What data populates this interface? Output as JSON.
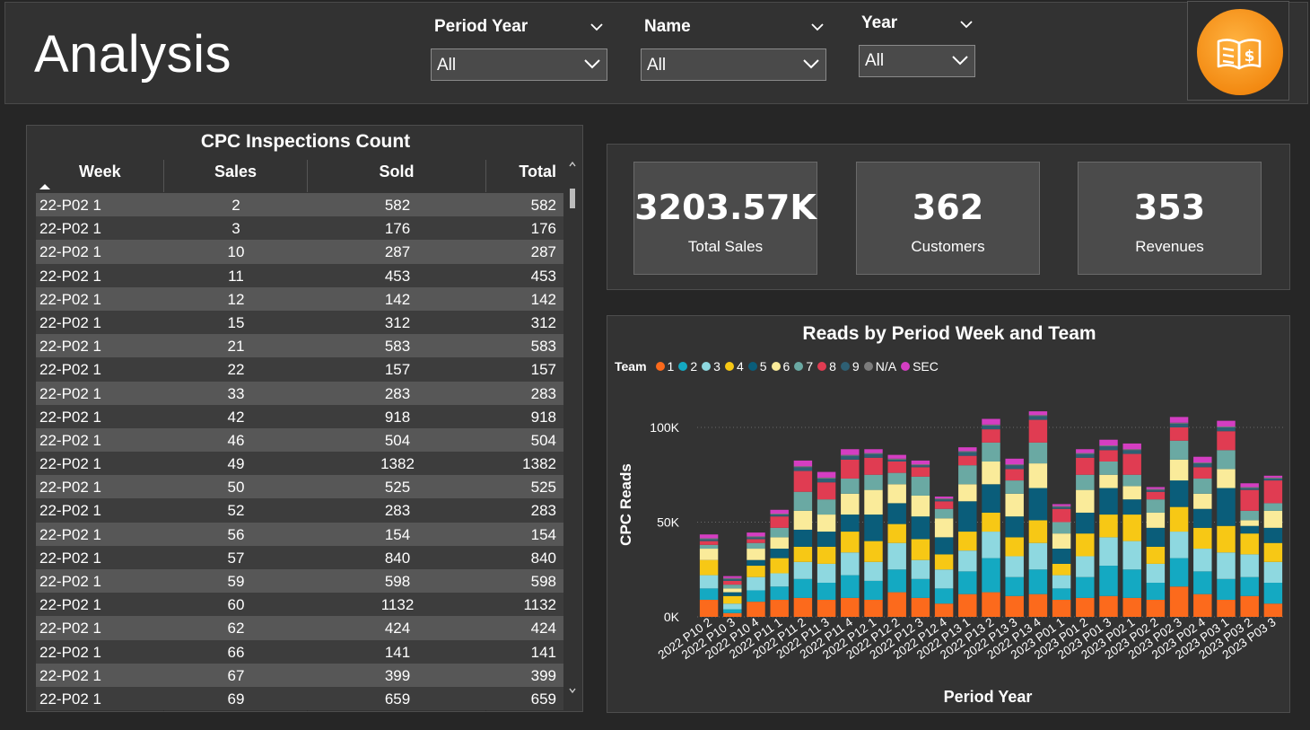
{
  "header": {
    "title": "Analysis",
    "slicers": [
      {
        "label": "Period Year",
        "value": "All"
      },
      {
        "label": "Name",
        "value": "All"
      },
      {
        "label": "Year",
        "value": "All"
      }
    ]
  },
  "table": {
    "title": "CPC Inspections Count",
    "columns": [
      "Week",
      "Sales",
      "Sold",
      "Total"
    ],
    "rows": [
      [
        "22-P02 1",
        "2",
        "582",
        "582"
      ],
      [
        "22-P02 1",
        "3",
        "176",
        "176"
      ],
      [
        "22-P02 1",
        "10",
        "287",
        "287"
      ],
      [
        "22-P02 1",
        "11",
        "453",
        "453"
      ],
      [
        "22-P02 1",
        "12",
        "142",
        "142"
      ],
      [
        "22-P02 1",
        "15",
        "312",
        "312"
      ],
      [
        "22-P02 1",
        "21",
        "583",
        "583"
      ],
      [
        "22-P02 1",
        "22",
        "157",
        "157"
      ],
      [
        "22-P02 1",
        "33",
        "283",
        "283"
      ],
      [
        "22-P02 1",
        "42",
        "918",
        "918"
      ],
      [
        "22-P02 1",
        "46",
        "504",
        "504"
      ],
      [
        "22-P02 1",
        "49",
        "1382",
        "1382"
      ],
      [
        "22-P02 1",
        "50",
        "525",
        "525"
      ],
      [
        "22-P02 1",
        "52",
        "283",
        "283"
      ],
      [
        "22-P02 1",
        "56",
        "154",
        "154"
      ],
      [
        "22-P02 1",
        "57",
        "840",
        "840"
      ],
      [
        "22-P02 1",
        "59",
        "598",
        "598"
      ],
      [
        "22-P02 1",
        "60",
        "1132",
        "1132"
      ],
      [
        "22-P02 1",
        "62",
        "424",
        "424"
      ],
      [
        "22-P02 1",
        "66",
        "141",
        "141"
      ],
      [
        "22-P02 1",
        "67",
        "399",
        "399"
      ],
      [
        "22-P02 1",
        "69",
        "659",
        "659"
      ]
    ]
  },
  "kpis": [
    {
      "value": "3203.57K",
      "label": "Total Sales"
    },
    {
      "value": "362",
      "label": "Customers"
    },
    {
      "value": "353",
      "label": "Revenues"
    }
  ],
  "icons": {
    "logo": "book-dollar-icon",
    "dropdown": "chevron-down-icon",
    "sort": "sort-ascending-icon"
  },
  "colors": {
    "accent": "#f38a12",
    "series": [
      "#fc6a1c",
      "#14a9c2",
      "#8ed8e0",
      "#f7c815",
      "#0a5d7a",
      "#faeb9a",
      "#6aa9a3",
      "#e03c52",
      "#2e5f73",
      "#7c7c7c",
      "#d43ec2"
    ]
  },
  "chart_data": {
    "type": "bar",
    "stacked": true,
    "title": "Reads by Period Week and Team",
    "xlabel": "Period Year",
    "ylabel": "CPC Reads",
    "legend_title": "Team",
    "legend_position": "top-left",
    "ylim": [
      0,
      100000
    ],
    "yticks": [
      "0K",
      "50K",
      "100K"
    ],
    "grid": true,
    "categories": [
      "2022 P10 2",
      "2022 P10 3",
      "2022 P10 4",
      "2022 P11 1",
      "2022 P11 2",
      "2022 P11 3",
      "2022 P11 4",
      "2022 P12 1",
      "2022 P12 2",
      "2022 P12 3",
      "2022 P12 4",
      "2022 P13 1",
      "2022 P13 2",
      "2022 P13 3",
      "2022 P13 4",
      "2023 P01 1",
      "2023 P01 2",
      "2023 P01 3",
      "2023 P02 1",
      "2023 P02 2",
      "2023 P02 3",
      "2023 P02 4",
      "2023 P03 1",
      "2023 P03 2",
      "2023 P03 3"
    ],
    "series": [
      {
        "name": "1",
        "values": [
          9000,
          2000,
          8000,
          9000,
          10000,
          9000,
          10000,
          9000,
          13000,
          10000,
          7000,
          12000,
          13000,
          11000,
          12000,
          9000,
          10000,
          11000,
          10000,
          9000,
          16000,
          12000,
          9000,
          11000,
          7000
        ]
      },
      {
        "name": "2",
        "values": [
          6000,
          2000,
          6000,
          7000,
          10000,
          9000,
          12000,
          10000,
          12000,
          10000,
          8000,
          12000,
          18000,
          10000,
          13000,
          6000,
          11000,
          16000,
          15000,
          9000,
          15000,
          12000,
          11000,
          10000,
          11000
        ]
      },
      {
        "name": "3",
        "values": [
          7000,
          3000,
          7000,
          7000,
          9000,
          10000,
          12000,
          10000,
          14000,
          10000,
          10000,
          11000,
          14000,
          11000,
          14000,
          7000,
          11000,
          15000,
          15000,
          10000,
          14000,
          12000,
          14000,
          12000,
          11000
        ]
      },
      {
        "name": "4",
        "values": [
          8000,
          4000,
          6000,
          8000,
          8000,
          9000,
          11000,
          11000,
          10000,
          11000,
          8000,
          10000,
          10000,
          10000,
          12000,
          6000,
          12000,
          12000,
          14000,
          9000,
          13000,
          11000,
          14000,
          11000,
          10000
        ]
      },
      {
        "name": "5",
        "values": [
          0,
          2000,
          3000,
          5000,
          9000,
          8000,
          9000,
          14000,
          11000,
          12000,
          9000,
          16000,
          15000,
          11000,
          17000,
          8000,
          11000,
          14000,
          8000,
          10000,
          14000,
          10000,
          20000,
          4000,
          8000
        ]
      },
      {
        "name": "6",
        "values": [
          6000,
          2000,
          6000,
          6000,
          10000,
          9000,
          11000,
          13000,
          10000,
          11000,
          10000,
          9000,
          12000,
          12000,
          13000,
          8000,
          12000,
          7000,
          7000,
          8000,
          11000,
          8000,
          10000,
          3000,
          9000
        ]
      },
      {
        "name": "7",
        "values": [
          2000,
          2000,
          3000,
          5000,
          10000,
          8000,
          8000,
          8000,
          6000,
          10000,
          5000,
          10000,
          10000,
          7000,
          11000,
          6000,
          8000,
          7000,
          6000,
          7000,
          10000,
          8000,
          10000,
          5000,
          4000
        ]
      },
      {
        "name": "8",
        "values": [
          2000,
          2000,
          2000,
          6000,
          11000,
          9000,
          10000,
          9000,
          6000,
          5000,
          4000,
          5000,
          7000,
          6000,
          12000,
          7000,
          9000,
          6000,
          11000,
          4000,
          7000,
          6000,
          10000,
          11000,
          12000
        ]
      },
      {
        "name": "9",
        "values": [
          1000,
          1000,
          1000,
          1000,
          2000,
          2000,
          2000,
          2000,
          1000,
          1000,
          1000,
          2000,
          2000,
          2000,
          2000,
          1000,
          2000,
          2000,
          2000,
          1000,
          2000,
          2000,
          2000,
          1000,
          1000
        ]
      },
      {
        "name": "N/A",
        "values": [
          500,
          500,
          500,
          500,
          500,
          500,
          500,
          500,
          500,
          500,
          500,
          500,
          500,
          500,
          500,
          500,
          500,
          500,
          500,
          500,
          500,
          500,
          500,
          500,
          500
        ]
      },
      {
        "name": "SEC",
        "values": [
          2000,
          1000,
          2000,
          2000,
          3000,
          3000,
          3000,
          2000,
          2000,
          2000,
          1000,
          2000,
          3000,
          3000,
          2000,
          1000,
          2000,
          3000,
          3000,
          1000,
          3000,
          3000,
          3000,
          2000,
          1000
        ]
      }
    ]
  }
}
